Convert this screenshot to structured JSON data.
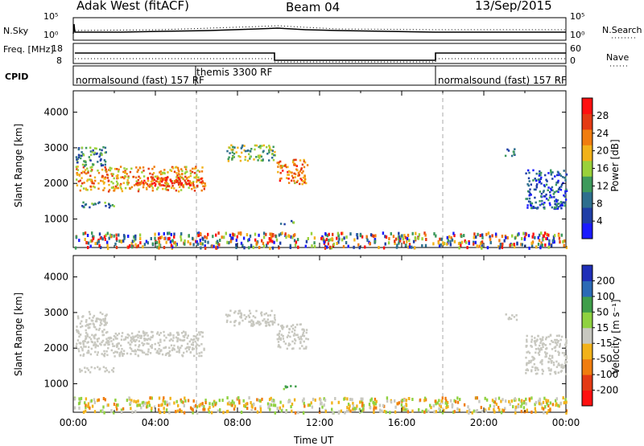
{
  "header": {
    "radar_title": "Adak West (fitACF)",
    "beam": "Beam 04",
    "date": "13/Sep/2015"
  },
  "strips": {
    "sky": {
      "label": "N.Sky",
      "right_label": "N.Search",
      "left_ticks": [
        "10^5",
        "10^0"
      ],
      "right_ticks": [
        "10^5",
        "10^0"
      ]
    },
    "freq": {
      "label": "Freq. [MHz]",
      "right_label": "Nave",
      "left_ticks": [
        "18",
        "8"
      ],
      "right_ticks": [
        "60",
        "0"
      ]
    },
    "cpid": {
      "label": "CPID",
      "segments": [
        {
          "text": "normalsound (fast) 157 RF"
        },
        {
          "text": "themis 3300 RF"
        },
        {
          "text": "normalsound (fast) 157 RF"
        }
      ]
    }
  },
  "colors": {
    "power_scale": [
      "#1a1aff",
      "#1f3ea6",
      "#2e6f8e",
      "#3e9a5c",
      "#9ad13a",
      "#f2b21a",
      "#f07d0f",
      "#e43a14",
      "#ff1010"
    ],
    "velocity_scale": [
      "#1f2fb8",
      "#2b6ab6",
      "#3f9e4a",
      "#8fd240",
      "#c8c8c0",
      "#f2b21a",
      "#f07d0f",
      "#e43a14",
      "#ff1010"
    ],
    "ground_scatter": "#c8c8c0"
  },
  "chart_data": [
    {
      "type": "heatmap",
      "name": "power",
      "ylabel": "Slant Range [km]",
      "yticks": [
        "1000",
        "2000",
        "3000",
        "4000"
      ],
      "ylim": [
        200,
        4600
      ],
      "xlim": [
        0,
        24
      ],
      "colorbar_label": "Power [dB]",
      "colorbar_ticks": [
        "4",
        "8",
        "12",
        "16",
        "20",
        "24",
        "28"
      ],
      "colorbar_range": [
        0,
        30
      ],
      "regions": [
        {
          "t0": 0.1,
          "t1": 6.4,
          "r0": 1800,
          "r1": 2500,
          "level": 20
        },
        {
          "t0": 0.1,
          "t1": 1.6,
          "r0": 2500,
          "r1": 3050,
          "level": 10
        },
        {
          "t0": 0.2,
          "t1": 2.0,
          "r0": 1350,
          "r1": 1500,
          "level": 8
        },
        {
          "t0": 3.0,
          "t1": 6.2,
          "r0": 1950,
          "r1": 2200,
          "level": 26
        },
        {
          "t0": 7.4,
          "t1": 9.8,
          "r0": 2650,
          "r1": 3100,
          "level": 14
        },
        {
          "t0": 9.9,
          "t1": 11.4,
          "r0": 2000,
          "r1": 2700,
          "level": 22
        },
        {
          "t0": 10.0,
          "t1": 10.8,
          "r0": 880,
          "r1": 980,
          "level": 10
        },
        {
          "t0": 21.0,
          "t1": 21.6,
          "r0": 2800,
          "r1": 3000,
          "level": 8
        },
        {
          "t0": 22.0,
          "t1": 24.0,
          "r0": 1300,
          "r1": 2400,
          "level": 6
        },
        {
          "t0": 0.0,
          "t1": 24.0,
          "r0": 220,
          "r1": 650,
          "level": 14
        }
      ]
    },
    {
      "type": "heatmap",
      "name": "velocity",
      "ylabel": "Slant Range [km]",
      "xlabel": "Time UT",
      "yticks": [
        "1000",
        "2000",
        "3000",
        "4000"
      ],
      "ylim": [
        200,
        4600
      ],
      "xlim": [
        0,
        24
      ],
      "xticks": [
        "00:00",
        "04:00",
        "08:00",
        "12:00",
        "16:00",
        "20:00",
        "00:00"
      ],
      "colorbar_label": "Velocity [m s^-1]",
      "colorbar_ticks": [
        "200",
        "100",
        "50",
        "15",
        "-15",
        "-50",
        "-100",
        "-200"
      ],
      "colorbar_range": [
        -250,
        250
      ],
      "regions": [
        {
          "t0": 0.1,
          "t1": 6.4,
          "r0": 1800,
          "r1": 2500,
          "value": 0
        },
        {
          "t0": 0.1,
          "t1": 1.6,
          "r0": 2500,
          "r1": 3050,
          "value": 0
        },
        {
          "t0": 0.2,
          "t1": 2.0,
          "r0": 1350,
          "r1": 1500,
          "value": 0
        },
        {
          "t0": 7.4,
          "t1": 9.8,
          "r0": 2650,
          "r1": 3100,
          "value": 0
        },
        {
          "t0": 9.9,
          "t1": 11.4,
          "r0": 2000,
          "r1": 2700,
          "value": 0
        },
        {
          "t0": 10.0,
          "t1": 10.8,
          "r0": 880,
          "r1": 980,
          "value": 60
        },
        {
          "t0": 21.0,
          "t1": 21.6,
          "r0": 2800,
          "r1": 3000,
          "value": 0
        },
        {
          "t0": 22.0,
          "t1": 24.0,
          "r0": 1300,
          "r1": 2400,
          "value": 0
        },
        {
          "t0": 0.0,
          "t1": 24.0,
          "r0": 220,
          "r1": 650,
          "value": -30
        }
      ]
    }
  ]
}
